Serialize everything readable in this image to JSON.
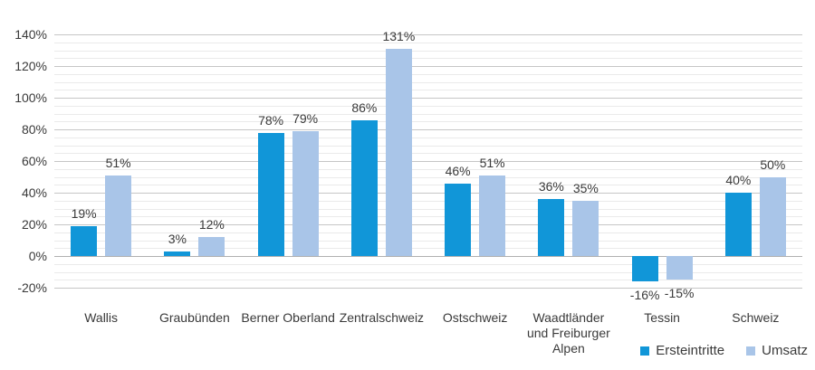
{
  "chart_data": {
    "type": "bar",
    "title": "",
    "xlabel": "",
    "ylabel": "",
    "categories": [
      "Wallis",
      "Graubünden",
      "Berner Oberland",
      "Zentralschweiz",
      "Ostschweiz",
      "Waadtländer\nund Freiburger\nAlpen",
      "Tessin",
      "Schweiz"
    ],
    "series": [
      {
        "name": "Ersteintritte",
        "color": "#1196d8",
        "values": [
          19,
          3,
          78,
          86,
          46,
          36,
          -16,
          40
        ]
      },
      {
        "name": "Umsatz",
        "color": "#a9c5e8",
        "values": [
          51,
          12,
          79,
          131,
          51,
          35,
          -15,
          50
        ]
      }
    ],
    "value_suffix": "%",
    "data_labels": true,
    "ylim": [
      -20,
      140
    ],
    "y_tick_step": 20,
    "y_minor_step": 5,
    "y_ticks": [
      "140%",
      "120%",
      "100%",
      "80%",
      "60%",
      "40%",
      "20%",
      "0%",
      "-20%"
    ],
    "grid": "horizontal, major and minor lines",
    "legend_position": "bottom-right",
    "colors": {
      "grid_major": "#c6c6c6",
      "grid_minor": "#eaeaea",
      "zero_line": "#b0b0b0",
      "text": "#3a3a3a",
      "background": "#ffffff"
    }
  }
}
